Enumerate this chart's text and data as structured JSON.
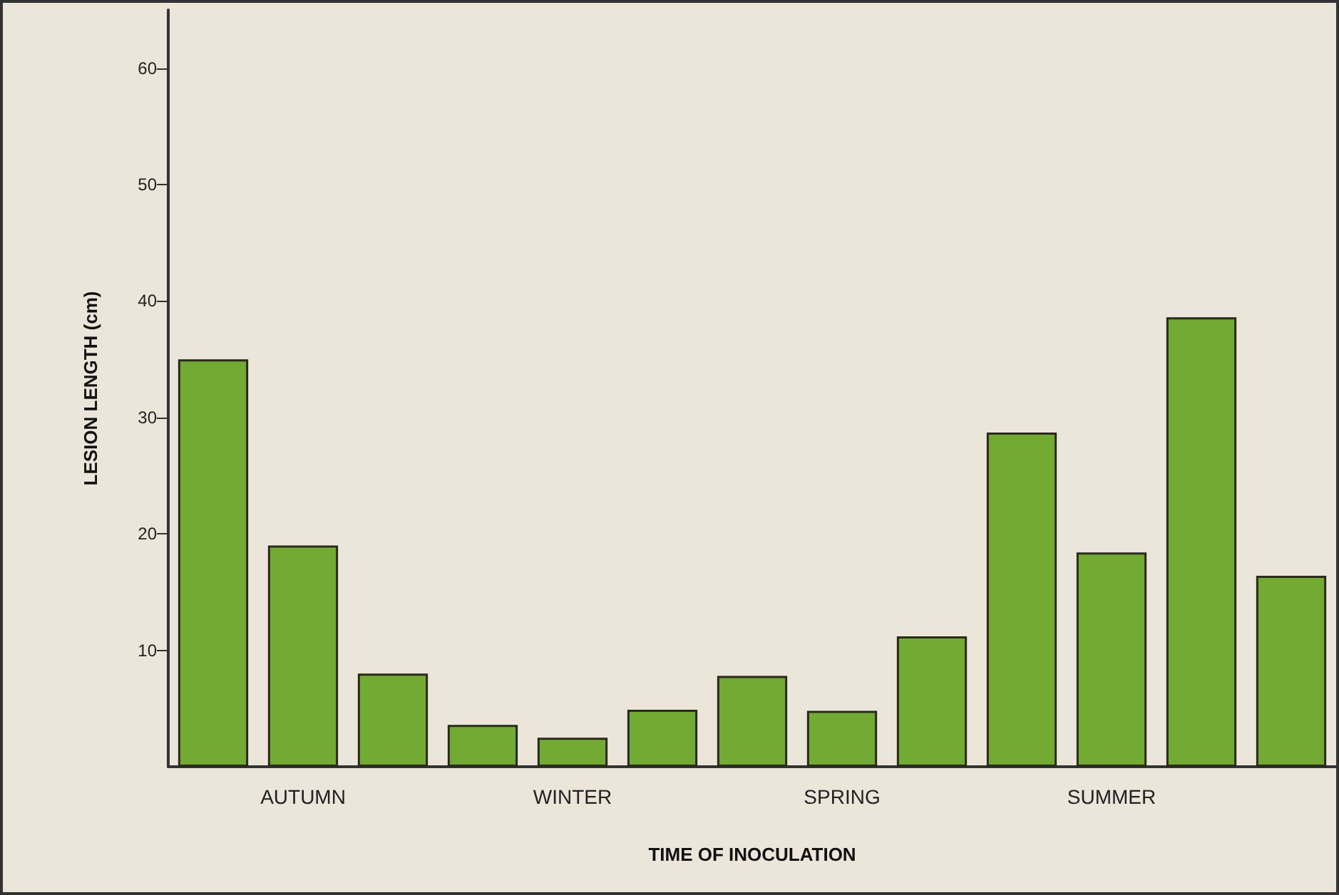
{
  "chart_data": {
    "type": "bar",
    "xlabel": "TIME OF INOCULATION",
    "ylabel": "LESION LENGTH (cm)",
    "categories": [
      null,
      "AUTUMN",
      null,
      null,
      "WINTER",
      null,
      null,
      "SPRING",
      null,
      null,
      "SUMMER",
      null,
      null
    ],
    "values": [
      35,
      19,
      8,
      3.6,
      2.5,
      4.9,
      7.8,
      4.8,
      11.2,
      28.7,
      18.4,
      38.6,
      16.4
    ],
    "color": "#72aa34",
    "ylim": [
      0,
      65
    ],
    "yticks": [
      10,
      20,
      30,
      40,
      50,
      60
    ],
    "grid": false
  }
}
